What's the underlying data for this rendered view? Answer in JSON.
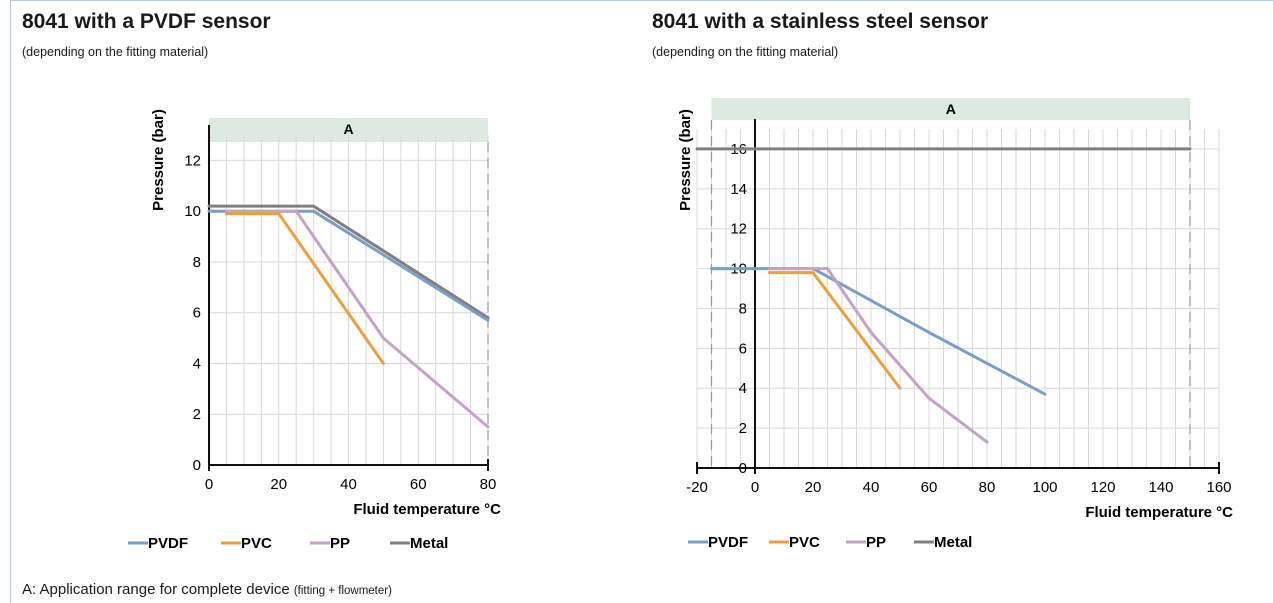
{
  "footnote": {
    "main": "A: Application range for complete device",
    "detail": "(fitting + flowmeter)"
  },
  "colors": {
    "PVDF": "#7b9ec9",
    "PVC": "#e9a03e",
    "PP": "#c3a3c6",
    "Metal": "#808080",
    "band": "#dcebe2"
  },
  "chart_data": [
    {
      "type": "line",
      "title": "8041 with a PVDF sensor",
      "subtitle": "(depending on the fitting material)",
      "xlabel": "Fluid temperature °C",
      "ylabel": "Pressure (bar)",
      "xlim": [
        0,
        80
      ],
      "ylim": [
        0,
        13
      ],
      "xticks": [
        0,
        20,
        40,
        60,
        80
      ],
      "yticks": [
        0,
        2,
        4,
        6,
        8,
        10,
        12
      ],
      "grid": true,
      "band": {
        "label": "A",
        "from": 0,
        "to": 80
      },
      "legend": {
        "position": "bottom",
        "entries": [
          "PVDF",
          "PVC",
          "PP",
          "Metal"
        ]
      },
      "series": [
        {
          "name": "Metal",
          "points": [
            [
              0,
              10.2
            ],
            [
              30,
              10.2
            ],
            [
              80,
              5.8
            ]
          ]
        },
        {
          "name": "PVDF",
          "points": [
            [
              0,
              10.0
            ],
            [
              30,
              10.0
            ],
            [
              80,
              5.7
            ]
          ]
        },
        {
          "name": "PP",
          "points": [
            [
              5,
              10.0
            ],
            [
              25,
              10.0
            ],
            [
              50,
              5.0
            ],
            [
              80,
              1.5
            ]
          ]
        },
        {
          "name": "PVC",
          "points": [
            [
              5,
              9.9
            ],
            [
              20,
              9.9
            ],
            [
              50,
              4.0
            ]
          ]
        }
      ]
    },
    {
      "type": "line",
      "title": "8041 with a stainless steel sensor",
      "subtitle": "(depending on the fitting material)",
      "xlabel": "Fluid temperature °C",
      "ylabel": "Pressure (bar)",
      "xlim": [
        -20,
        160
      ],
      "ylim": [
        0,
        17
      ],
      "xticks": [
        -20,
        0,
        20,
        40,
        60,
        80,
        100,
        120,
        140,
        160
      ],
      "yticks": [
        0,
        2,
        4,
        6,
        8,
        10,
        12,
        14,
        16
      ],
      "grid": true,
      "band": {
        "label": "A",
        "from": -15,
        "to": 150
      },
      "legend": {
        "position": "bottom",
        "entries": [
          "PVDF",
          "PVC",
          "PP",
          "Metal"
        ]
      },
      "series": [
        {
          "name": "Metal",
          "points": [
            [
              -20,
              16.0
            ],
            [
              150,
              16.0
            ]
          ]
        },
        {
          "name": "PVDF",
          "points": [
            [
              -15,
              10.0
            ],
            [
              20,
              10.0
            ],
            [
              60,
              6.8
            ],
            [
              100,
              3.7
            ]
          ]
        },
        {
          "name": "PP",
          "points": [
            [
              5,
              10.0
            ],
            [
              25,
              10.0
            ],
            [
              40,
              6.8
            ],
            [
              60,
              3.5
            ],
            [
              80,
              1.3
            ]
          ]
        },
        {
          "name": "PVC",
          "points": [
            [
              5,
              9.8
            ],
            [
              20,
              9.8
            ],
            [
              50,
              4.0
            ]
          ]
        }
      ]
    }
  ]
}
